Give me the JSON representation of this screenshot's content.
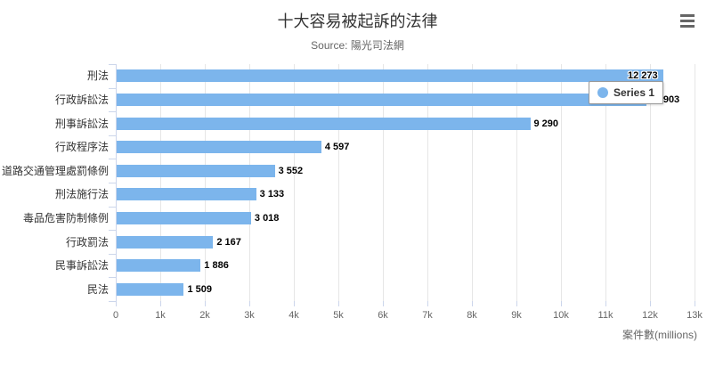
{
  "header": {
    "title": "十大容易被起訴的法律",
    "subtitle": "Source: 陽光司法網",
    "menu_icon": "hamburger-icon"
  },
  "legend": {
    "series_label": "Series 1",
    "marker_color": "#7cb5ec",
    "position": "floating top-right, overlapping bars 1-2"
  },
  "chart_data": {
    "type": "bar",
    "title": "十大容易被起訴的法律",
    "subtitle": "Source: 陽光司法網",
    "legend": "Series 1",
    "categories": [
      "刑法",
      "行政訴訟法",
      "刑事訴訟法",
      "行政程序法",
      "道路交通管理處罰條例",
      "刑法施行法",
      "毒品危害防制條例",
      "行政罰法",
      "民事訴訟法",
      "民法"
    ],
    "values": [
      12273,
      11903,
      9290,
      4597,
      3552,
      3133,
      3018,
      2167,
      1886,
      1509
    ],
    "value_labels": [
      "12 273",
      "11 903",
      "9 290",
      "4 597",
      "3 552",
      "3 133",
      "3 018",
      "2 167",
      "1 886",
      "1 509"
    ],
    "xlabel": "案件數(millions)",
    "ylabel": "",
    "x_ticks": [
      "0",
      "1k",
      "2k",
      "3k",
      "4k",
      "5k",
      "6k",
      "7k",
      "8k",
      "9k",
      "10k",
      "11k",
      "12k",
      "13k"
    ],
    "xlim": [
      0,
      13000
    ],
    "grid": true,
    "bar_color": "#7cb5ec",
    "colors": {
      "bar": "#7cb5ec",
      "axis_line": "#ccd6eb",
      "gridline": "#e6e6e6",
      "title_text": "#333333",
      "subtitle_text": "#666666",
      "tick_label": "#666666",
      "category_label": "#333333",
      "data_label": "#000000",
      "legend_border": "#999999",
      "menu_icon": "#666666"
    }
  }
}
